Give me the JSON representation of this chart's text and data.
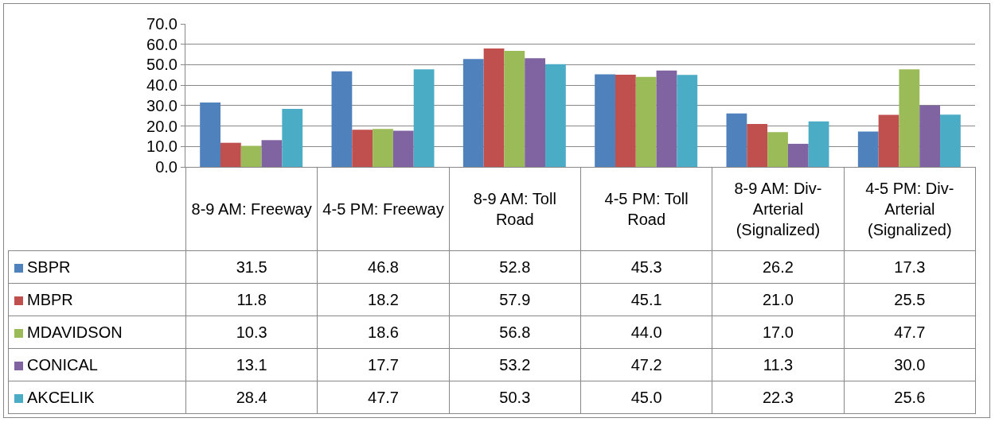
{
  "chart_data": {
    "type": "bar",
    "categories": [
      "8-9 AM: Freeway",
      "4-5 PM: Freeway",
      "8-9 AM: Toll Road",
      "4-5 PM: Toll Road",
      "8-9 AM: Div-Arterial (Signalized)",
      "4-5 PM: Div-Arterial (Signalized)"
    ],
    "series": [
      {
        "name": "SBPR",
        "color": "#4f81bd",
        "values": [
          31.5,
          46.8,
          52.8,
          45.3,
          26.2,
          17.3
        ],
        "value_labels": [
          "31.5",
          "46.8",
          "52.8",
          "45.3",
          "26.2",
          "17.3"
        ]
      },
      {
        "name": "MBPR",
        "color": "#c0504d",
        "values": [
          11.8,
          18.2,
          57.9,
          45.1,
          21.0,
          25.5
        ],
        "value_labels": [
          "11.8",
          "18.2",
          "57.9",
          "45.1",
          "21.0",
          "25.5"
        ]
      },
      {
        "name": "MDAVIDSON",
        "color": "#9bbb59",
        "values": [
          10.3,
          18.6,
          56.8,
          44.0,
          17.0,
          47.7
        ],
        "value_labels": [
          "10.3",
          "18.6",
          "56.8",
          "44.0",
          "17.0",
          "47.7"
        ]
      },
      {
        "name": "CONICAL",
        "color": "#8064a2",
        "values": [
          13.1,
          17.7,
          53.2,
          47.2,
          11.3,
          30.0
        ],
        "value_labels": [
          "13.1",
          "17.7",
          "53.2",
          "47.2",
          "11.3",
          "30.0"
        ]
      },
      {
        "name": "AKCELIK",
        "color": "#4bacc6",
        "values": [
          28.4,
          47.7,
          50.3,
          45.0,
          22.3,
          25.6
        ],
        "value_labels": [
          "28.4",
          "47.7",
          "50.3",
          "45.0",
          "22.3",
          "25.6"
        ]
      }
    ],
    "ylim": [
      0,
      70
    ],
    "yticks": [
      {
        "value": 0,
        "label": "0.0"
      },
      {
        "value": 10,
        "label": "10.0"
      },
      {
        "value": 20,
        "label": "20.0"
      },
      {
        "value": 30,
        "label": "30.0"
      },
      {
        "value": 40,
        "label": "40.0"
      },
      {
        "value": 50,
        "label": "50.0"
      },
      {
        "value": 60,
        "label": "60.0"
      },
      {
        "value": 70,
        "label": "70.0"
      }
    ],
    "grid": "y",
    "legend": "bottom left"
  }
}
